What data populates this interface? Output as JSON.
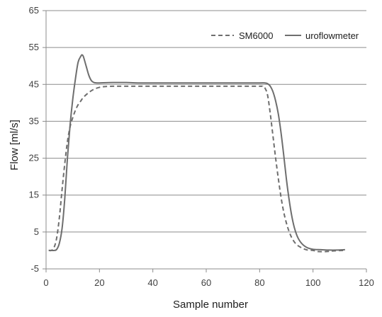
{
  "chart_data": {
    "type": "line",
    "title": "",
    "xlabel": "Sample number",
    "ylabel": "Flow [ml/s]",
    "xlim": [
      0,
      120
    ],
    "ylim": [
      -5,
      65
    ],
    "x_ticks": [
      0,
      20,
      40,
      60,
      80,
      100,
      120
    ],
    "y_ticks": [
      -5,
      5,
      15,
      25,
      35,
      45,
      55,
      65
    ],
    "gridlines": [
      5,
      15,
      25,
      35,
      45,
      55,
      65
    ],
    "grid": "horizontal major",
    "legend": "top-right",
    "colors": {
      "line": "#6e6e6e",
      "grid": "#8c8c8c",
      "axis": "#8c8c8c"
    },
    "series": [
      {
        "name": "SM6000",
        "style": "dashed",
        "x": [
          1,
          2,
          3,
          4,
          5,
          6,
          7,
          8,
          9,
          10,
          11,
          12,
          13,
          14,
          16,
          18,
          20,
          22,
          25,
          30,
          40,
          50,
          60,
          70,
          80,
          81,
          82,
          83,
          84,
          85,
          86,
          87,
          88,
          89,
          90,
          91,
          92,
          93,
          94,
          95,
          96,
          97,
          98,
          100,
          102,
          105,
          108,
          112
        ],
        "y": [
          0,
          0,
          0.8,
          3.5,
          9,
          16.5,
          23.5,
          29.5,
          33.5,
          36,
          38,
          39.5,
          40.5,
          41.5,
          42.8,
          43.7,
          44.2,
          44.4,
          44.5,
          44.5,
          44.5,
          44.5,
          44.5,
          44.5,
          44.5,
          44.5,
          44,
          42,
          37,
          31,
          25,
          19.5,
          14.5,
          10.5,
          7.5,
          5.2,
          3.5,
          2.3,
          1.5,
          1,
          0.6,
          0.3,
          0.1,
          0,
          -0.3,
          -0.3,
          -0.1,
          0
        ]
      },
      {
        "name": "uroflowmeter",
        "style": "solid",
        "x": [
          1,
          2,
          3,
          4,
          5,
          6,
          7,
          8,
          9,
          10,
          11,
          12,
          13,
          13.5,
          14,
          15,
          16,
          17,
          18,
          19,
          20,
          25,
          30,
          35,
          40,
          45,
          50,
          55,
          60,
          65,
          70,
          75,
          80,
          82,
          83,
          84,
          85,
          86,
          87,
          88,
          89,
          90,
          91,
          92,
          93,
          94,
          95,
          96,
          97,
          98,
          100,
          103,
          106,
          109,
          112
        ],
        "y": [
          0,
          0,
          0,
          0.3,
          2,
          6,
          14,
          25,
          34,
          41,
          46.5,
          51,
          52.6,
          53,
          52.5,
          50,
          47.5,
          46,
          45.5,
          45.4,
          45.4,
          45.5,
          45.5,
          45.4,
          45.4,
          45.4,
          45.4,
          45.4,
          45.4,
          45.4,
          45.4,
          45.4,
          45.4,
          45.4,
          45.2,
          44.5,
          43,
          40.5,
          37,
          32,
          26,
          19.5,
          14,
          9.5,
          6.2,
          4,
          2.6,
          1.7,
          1.1,
          0.7,
          0.3,
          0.2,
          0.1,
          0.1,
          0.2
        ]
      }
    ]
  }
}
